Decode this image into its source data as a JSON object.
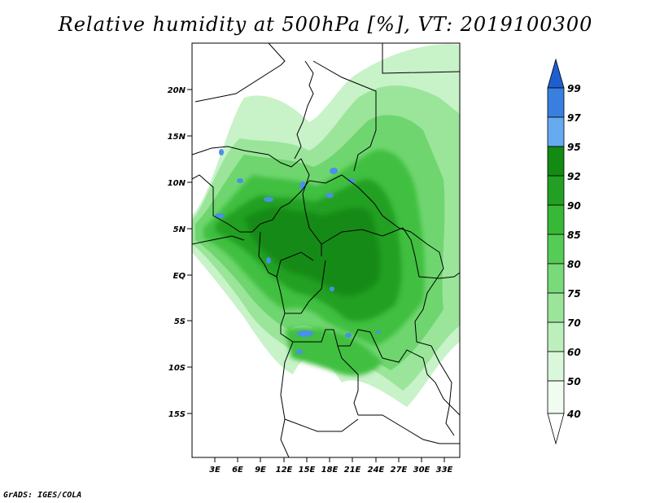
{
  "title": "Relative humidity at 500hPa [%], VT: 2019100300",
  "footer": "GrADS: IGES/COLA",
  "map": {
    "lon_range": [
      0,
      35
    ],
    "lat_range": [
      -20,
      25
    ],
    "lat_ticks": [
      "20N",
      "15N",
      "10N",
      "5N",
      "EQ",
      "5S",
      "10S",
      "15S"
    ],
    "lon_ticks": [
      "3E",
      "6E",
      "9E",
      "12E",
      "15E",
      "18E",
      "21E",
      "24E",
      "27E",
      "30E",
      "33E"
    ]
  },
  "colorbar": {
    "labels": [
      "99",
      "97",
      "95",
      "92",
      "90",
      "85",
      "80",
      "75",
      "70",
      "60",
      "50",
      "40"
    ],
    "colors": [
      "#1e5fd0",
      "#3a7fe0",
      "#66aaf0",
      "#138a13",
      "#23a023",
      "#38b838",
      "#55cc55",
      "#78da78",
      "#9ae59a",
      "#bcefbc",
      "#daf7da",
      "#effcef"
    ],
    "top_color": "#1e5fd0",
    "bottom_color": "#ffffff"
  }
}
